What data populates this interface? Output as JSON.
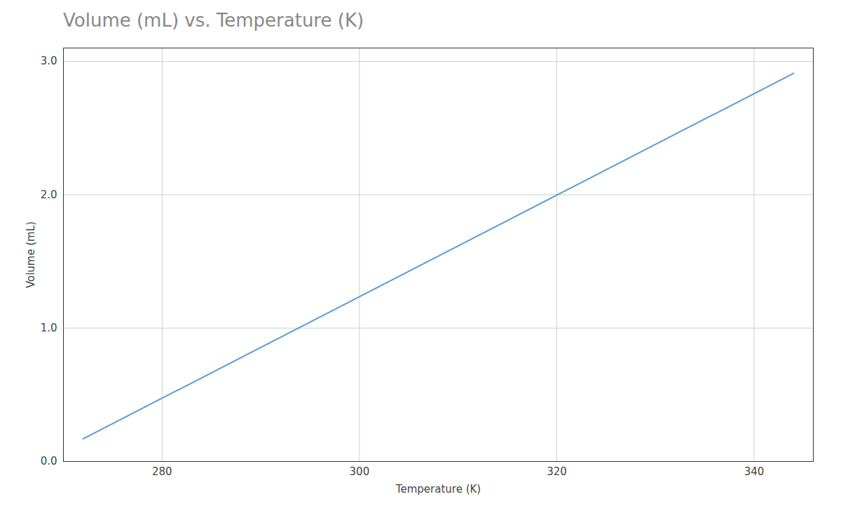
{
  "chart_data": {
    "type": "line",
    "title": "Volume (mL) vs. Temperature (K)",
    "xlabel": "Temperature (K)",
    "ylabel": "Volume (mL)",
    "x": [
      272,
      344
    ],
    "series": [
      {
        "values": [
          0.17,
          2.91
        ],
        "color": "#5b9bd5"
      }
    ],
    "xlim": [
      270,
      346
    ],
    "ylim": [
      0,
      3.1
    ],
    "xticks": [
      280,
      300,
      320,
      340
    ],
    "yticks": [
      0,
      1,
      2,
      3
    ],
    "grid": true
  }
}
